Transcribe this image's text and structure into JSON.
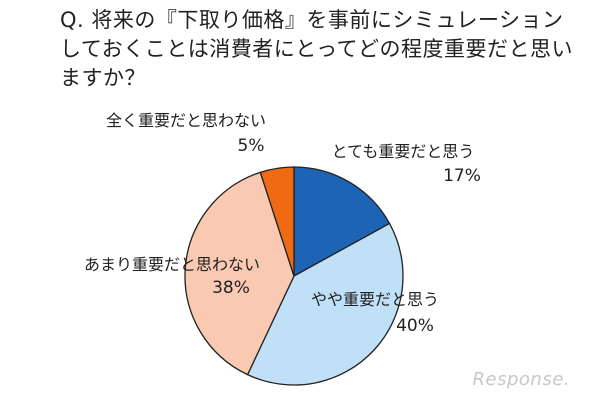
{
  "chart_data": {
    "type": "pie",
    "title": "Q. 将来の『下取り価格』を事前にシミュレーションしておくことは消費者にとってどの程度重要だと思いますか？",
    "slices": [
      {
        "label": "とても重要だと思う",
        "value": 17,
        "value_label": "17%",
        "color": "#1e64b4"
      },
      {
        "label": "やや重要だと思う",
        "value": 40,
        "value_label": "40%",
        "color": "#c0e0f8"
      },
      {
        "label": "あまり重要だと思わない",
        "value": 38,
        "value_label": "38%",
        "color": "#f9c9b2"
      },
      {
        "label": "全く重要だと思わない",
        "value": 5,
        "value_label": "5%",
        "color": "#f06a14"
      }
    ],
    "start_angle": "12 o'clock",
    "direction": "clockwise",
    "legend": "none"
  },
  "watermark": "Response."
}
